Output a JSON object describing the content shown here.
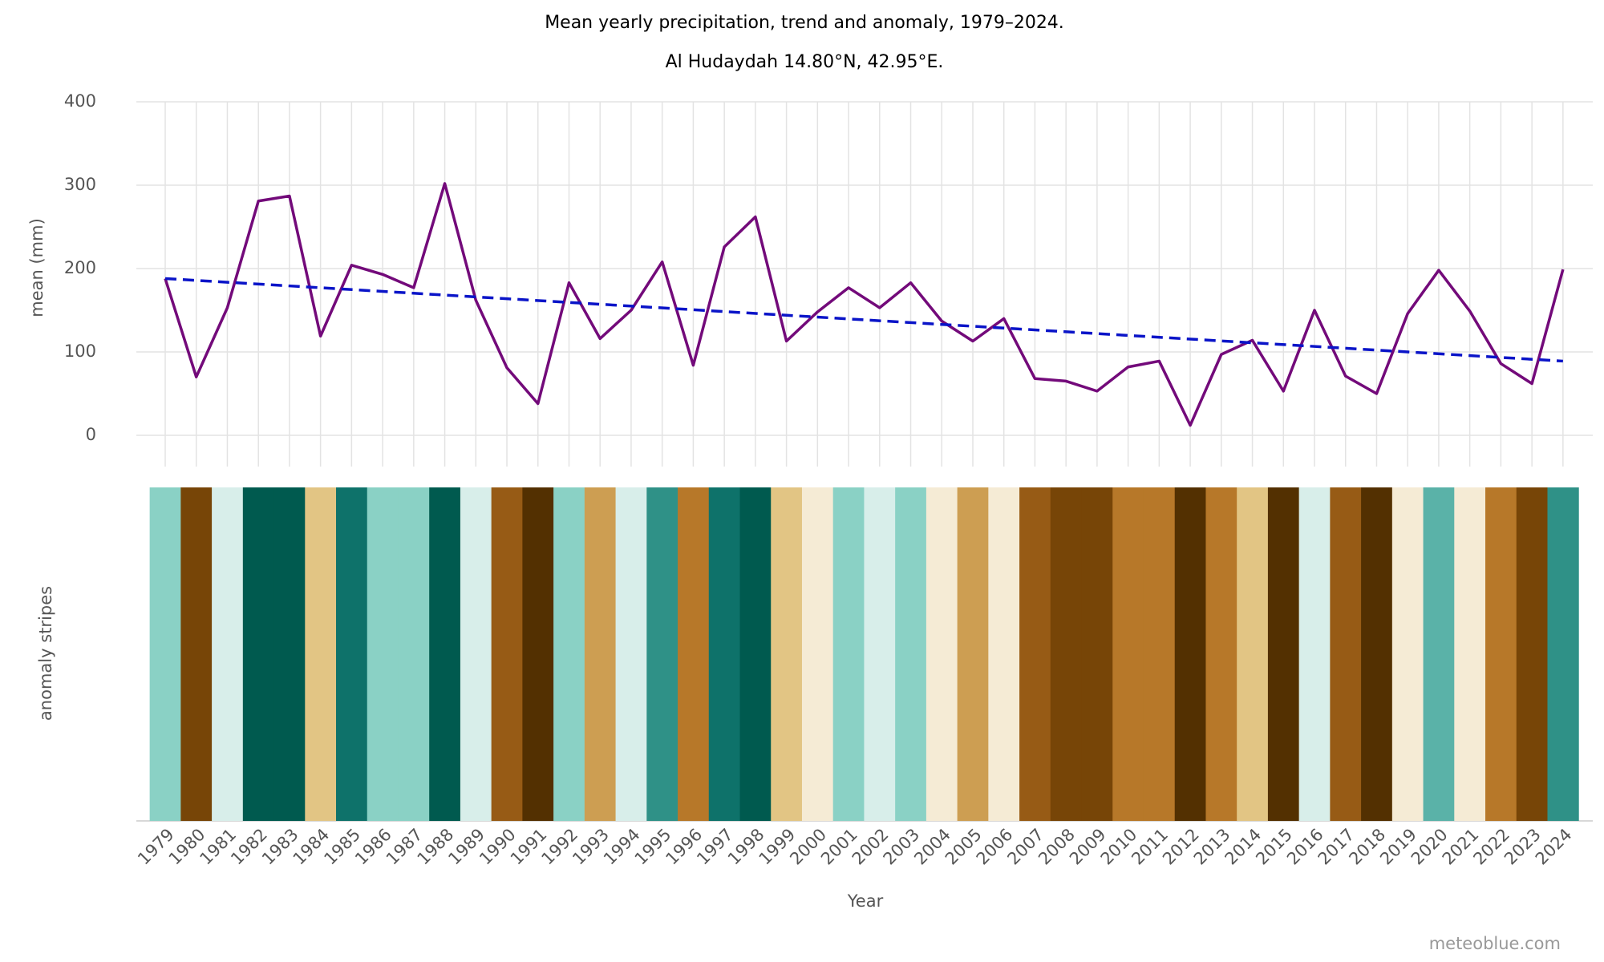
{
  "chart_data": {
    "type": "line",
    "title": "Mean yearly precipitation, trend and anomaly, 1979–2024.",
    "subtitle": "Al Hudaydah 14.80°N, 42.95°E.",
    "y_label": "mean (mm)",
    "stripes_label": "anomaly stripes",
    "x_label": "Year",
    "credit": "meteoblue.com",
    "categories": [
      "1979",
      "1980",
      "1981",
      "1982",
      "1983",
      "1984",
      "1985",
      "1986",
      "1987",
      "1988",
      "1989",
      "1990",
      "1991",
      "1992",
      "1993",
      "1994",
      "1995",
      "1996",
      "1997",
      "1998",
      "1999",
      "2000",
      "2001",
      "2002",
      "2003",
      "2004",
      "2005",
      "2006",
      "2007",
      "2008",
      "2009",
      "2010",
      "2011",
      "2012",
      "2013",
      "2014",
      "2015",
      "2016",
      "2017",
      "2018",
      "2019",
      "2020",
      "2021",
      "2022",
      "2023",
      "2024"
    ],
    "series": [
      {
        "color": "#730a7a",
        "values": [
          188,
          70,
          153,
          281,
          287,
          119,
          204,
          193,
          177,
          302,
          162,
          81,
          38,
          183,
          116,
          150,
          208,
          84,
          226,
          262,
          113,
          148,
          177,
          153,
          183,
          137,
          113,
          140,
          68,
          65,
          53,
          82,
          89,
          12,
          97,
          114,
          53,
          150,
          71,
          50,
          146,
          198,
          149,
          86,
          62,
          199
        ]
      }
    ],
    "trend": {
      "color": "#0a14c8",
      "x": [
        1979,
        2024
      ],
      "values": [
        188,
        89
      ]
    },
    "stripes": {
      "colors": [
        "#8ad1c5",
        "#774507",
        "#d8eeea",
        "#005a4f",
        "#005a4f",
        "#e2c584",
        "#0e726a",
        "#8ad1c5",
        "#8ad1c5",
        "#005a4f",
        "#d8eeea",
        "#975b15",
        "#533001",
        "#8ad1c5",
        "#cd9e52",
        "#d8eeea",
        "#2f9187",
        "#b77829",
        "#0e726a",
        "#005a4f",
        "#e2c584",
        "#f5ebd5",
        "#8ad1c5",
        "#d8eeea",
        "#8ad1c5",
        "#f5ebd5",
        "#cd9e52",
        "#f5ebd5",
        "#975b15",
        "#774507",
        "#774507",
        "#b77829",
        "#b77829",
        "#533001",
        "#b77829",
        "#e2c584",
        "#533001",
        "#d8eeea",
        "#975b15",
        "#533001",
        "#f5ebd5",
        "#5ab2a8",
        "#f5ebd5",
        "#b77829",
        "#774507",
        "#2f9187"
      ]
    },
    "ylim": [
      0,
      400
    ],
    "yticks": [
      0,
      100,
      200,
      300,
      400
    ],
    "grid": true
  }
}
